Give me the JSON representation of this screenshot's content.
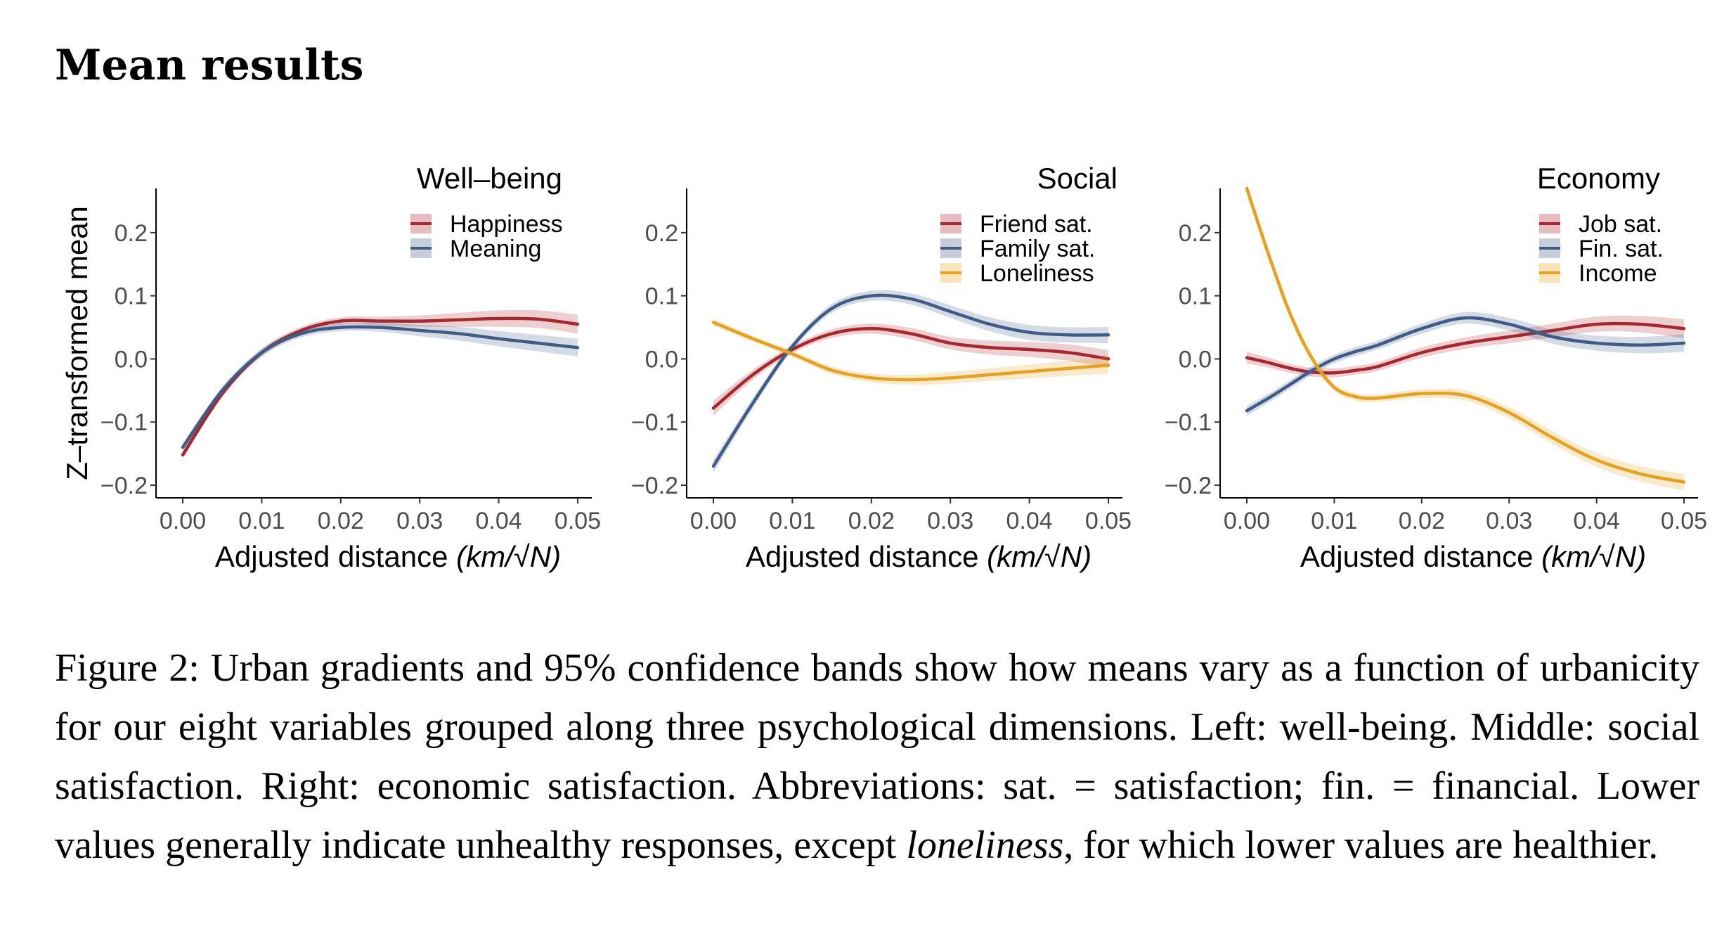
{
  "section_title": "Mean results",
  "caption": {
    "part1": "Figure 2: Urban gradients and 95% confidence bands show how means vary as a function of urbanicity for our eight variables grouped along three psychological dimensions. Left: well-being. Middle: social satisfaction. Right: economic satisfaction. Abbreviations: sat. = satisfaction; fin. = financial. Lower values generally indicate unhealthy responses, except ",
    "italic": "loneliness",
    "part2": ", for which lower values are healthier."
  },
  "colors": {
    "red": "#a8262d",
    "blue": "#3f5c86",
    "orange": "#e8a11c"
  },
  "chart_data": [
    {
      "type": "line",
      "title": "Well–being",
      "ylabel": "Z–transformed mean",
      "xlabel": "Adjusted distance",
      "xlabel_math": "(km/√N)",
      "xlim": [
        0,
        0.05
      ],
      "ylim": [
        -0.22,
        0.27
      ],
      "xticks": [
        "0.00",
        "0.01",
        "0.02",
        "0.03",
        "0.04",
        "0.05"
      ],
      "yticks": [
        "−0.2",
        "−0.1",
        "0.0",
        "0.1",
        "0.2"
      ],
      "legend": "top-right",
      "x": [
        0,
        0.005,
        0.01,
        0.015,
        0.02,
        0.025,
        0.03,
        0.035,
        0.04,
        0.045,
        0.05
      ],
      "series": [
        {
          "name": "Happiness",
          "color": "red",
          "values": [
            -0.152,
            -0.055,
            0.01,
            0.045,
            0.06,
            0.06,
            0.06,
            0.062,
            0.064,
            0.063,
            0.055
          ],
          "band": [
            0.006,
            0.006,
            0.006,
            0.006,
            0.006,
            0.007,
            0.009,
            0.011,
            0.013,
            0.014,
            0.015
          ]
        },
        {
          "name": "Meaning",
          "color": "blue",
          "values": [
            -0.14,
            -0.05,
            0.01,
            0.04,
            0.05,
            0.05,
            0.045,
            0.04,
            0.032,
            0.025,
            0.018
          ],
          "band": [
            0.006,
            0.006,
            0.006,
            0.006,
            0.006,
            0.007,
            0.009,
            0.011,
            0.012,
            0.013,
            0.014
          ]
        }
      ]
    },
    {
      "type": "line",
      "title": "Social",
      "ylabel": "",
      "xlabel": "Adjusted distance",
      "xlabel_math": "(km/√N)",
      "xlim": [
        0,
        0.05
      ],
      "ylim": [
        -0.22,
        0.27
      ],
      "xticks": [
        "0.00",
        "0.01",
        "0.02",
        "0.03",
        "0.04",
        "0.05"
      ],
      "yticks": [
        "−0.2",
        "−0.1",
        "0.0",
        "0.1",
        "0.2"
      ],
      "legend": "top-right",
      "x": [
        0,
        0.005,
        0.01,
        0.015,
        0.02,
        0.025,
        0.03,
        0.035,
        0.04,
        0.045,
        0.05
      ],
      "series": [
        {
          "name": "Friend sat.",
          "color": "red",
          "values": [
            -0.078,
            -0.025,
            0.015,
            0.04,
            0.048,
            0.04,
            0.025,
            0.018,
            0.015,
            0.01,
            0.0
          ],
          "band": [
            0.012,
            0.008,
            0.006,
            0.007,
            0.008,
            0.009,
            0.01,
            0.011,
            0.012,
            0.013,
            0.014
          ]
        },
        {
          "name": "Family sat.",
          "color": "blue",
          "values": [
            -0.17,
            -0.07,
            0.02,
            0.08,
            0.1,
            0.095,
            0.075,
            0.055,
            0.042,
            0.038,
            0.038
          ],
          "band": [
            0.01,
            0.008,
            0.006,
            0.007,
            0.008,
            0.009,
            0.01,
            0.011,
            0.012,
            0.012,
            0.013
          ]
        },
        {
          "name": "Loneliness",
          "color": "orange",
          "values": [
            0.058,
            0.032,
            0.008,
            -0.018,
            -0.03,
            -0.033,
            -0.03,
            -0.025,
            -0.02,
            -0.015,
            -0.01
          ],
          "band": [
            0.006,
            0.005,
            0.005,
            0.006,
            0.007,
            0.008,
            0.009,
            0.01,
            0.011,
            0.012,
            0.013
          ]
        }
      ]
    },
    {
      "type": "line",
      "title": "Economy",
      "ylabel": "",
      "xlabel": "Adjusted distance",
      "xlabel_math": "(km/√N)",
      "xlim": [
        0,
        0.05
      ],
      "ylim": [
        -0.22,
        0.27
      ],
      "xticks": [
        "0.00",
        "0.01",
        "0.02",
        "0.03",
        "0.04",
        "0.05"
      ],
      "yticks": [
        "−0.2",
        "−0.1",
        "0.0",
        "0.1",
        "0.2"
      ],
      "legend": "top-right",
      "x": [
        0,
        0.0025,
        0.005,
        0.0075,
        0.01,
        0.0125,
        0.015,
        0.02,
        0.025,
        0.03,
        0.035,
        0.04,
        0.045,
        0.05
      ],
      "series": [
        {
          "name": "Job sat.",
          "color": "red",
          "values": [
            0.002,
            -0.006,
            -0.015,
            -0.021,
            -0.022,
            -0.018,
            -0.012,
            0.01,
            0.025,
            0.035,
            0.045,
            0.055,
            0.055,
            0.048
          ],
          "band": [
            0.009,
            0.008,
            0.007,
            0.007,
            0.007,
            0.007,
            0.007,
            0.008,
            0.009,
            0.01,
            0.011,
            0.012,
            0.013,
            0.015
          ]
        },
        {
          "name": "Fin. sat.",
          "color": "blue",
          "values": [
            -0.082,
            -0.062,
            -0.04,
            -0.018,
            0.0,
            0.012,
            0.022,
            0.048,
            0.065,
            0.055,
            0.035,
            0.025,
            0.022,
            0.025
          ],
          "band": [
            0.008,
            0.007,
            0.007,
            0.007,
            0.007,
            0.007,
            0.007,
            0.008,
            0.009,
            0.01,
            0.011,
            0.012,
            0.013,
            0.014
          ]
        },
        {
          "name": "Income",
          "color": "orange",
          "values": [
            0.27,
            0.165,
            0.07,
            0.0,
            -0.045,
            -0.06,
            -0.062,
            -0.055,
            -0.058,
            -0.085,
            -0.125,
            -0.16,
            -0.182,
            -0.195
          ],
          "band": [
            0.01,
            0.009,
            0.008,
            0.007,
            0.006,
            0.006,
            0.006,
            0.007,
            0.008,
            0.009,
            0.01,
            0.011,
            0.012,
            0.013
          ]
        }
      ]
    }
  ]
}
